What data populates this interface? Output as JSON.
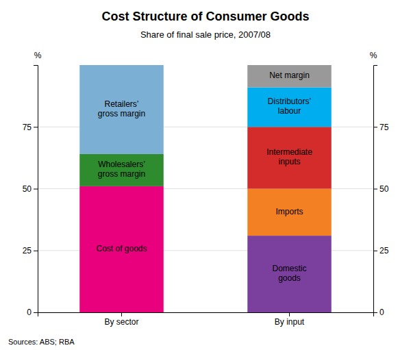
{
  "chart_data": {
    "type": "bar",
    "stacked": true,
    "title": "Cost Structure of Consumer Goods",
    "subtitle": "Share of final sale price, 2007/08",
    "source": "Sources: ABS; RBA",
    "ylabel": "%",
    "y2label": "%",
    "categories": [
      "By sector",
      "By input"
    ],
    "series": [
      {
        "name": "Cost of goods",
        "color": "#E8007D",
        "values": [
          51,
          null
        ]
      },
      {
        "name": "Wholesalers’\ngross margin",
        "color": "#2E8B2E",
        "values": [
          13,
          null
        ]
      },
      {
        "name": "Retailers’\ngross margin",
        "color": "#7BAFD4",
        "values": [
          36,
          null
        ]
      },
      {
        "name": "Domestic\ngoods",
        "color": "#7B3F9E",
        "values": [
          null,
          31
        ]
      },
      {
        "name": "Imports",
        "color": "#F48024",
        "values": [
          null,
          19
        ]
      },
      {
        "name": "Intermediate\ninputs",
        "color": "#D42B2B",
        "values": [
          null,
          25
        ]
      },
      {
        "name": "Distributors’\nlabour",
        "color": "#00AEEF",
        "values": [
          null,
          16
        ]
      },
      {
        "name": "Net margin",
        "color": "#999999",
        "values": [
          null,
          9
        ]
      }
    ],
    "ylim": [
      0,
      100
    ],
    "yticks": [
      0,
      25,
      50,
      75
    ],
    "y2lim": [
      0,
      100
    ],
    "y2ticks": [
      0,
      25,
      50,
      75
    ],
    "grid": true
  }
}
